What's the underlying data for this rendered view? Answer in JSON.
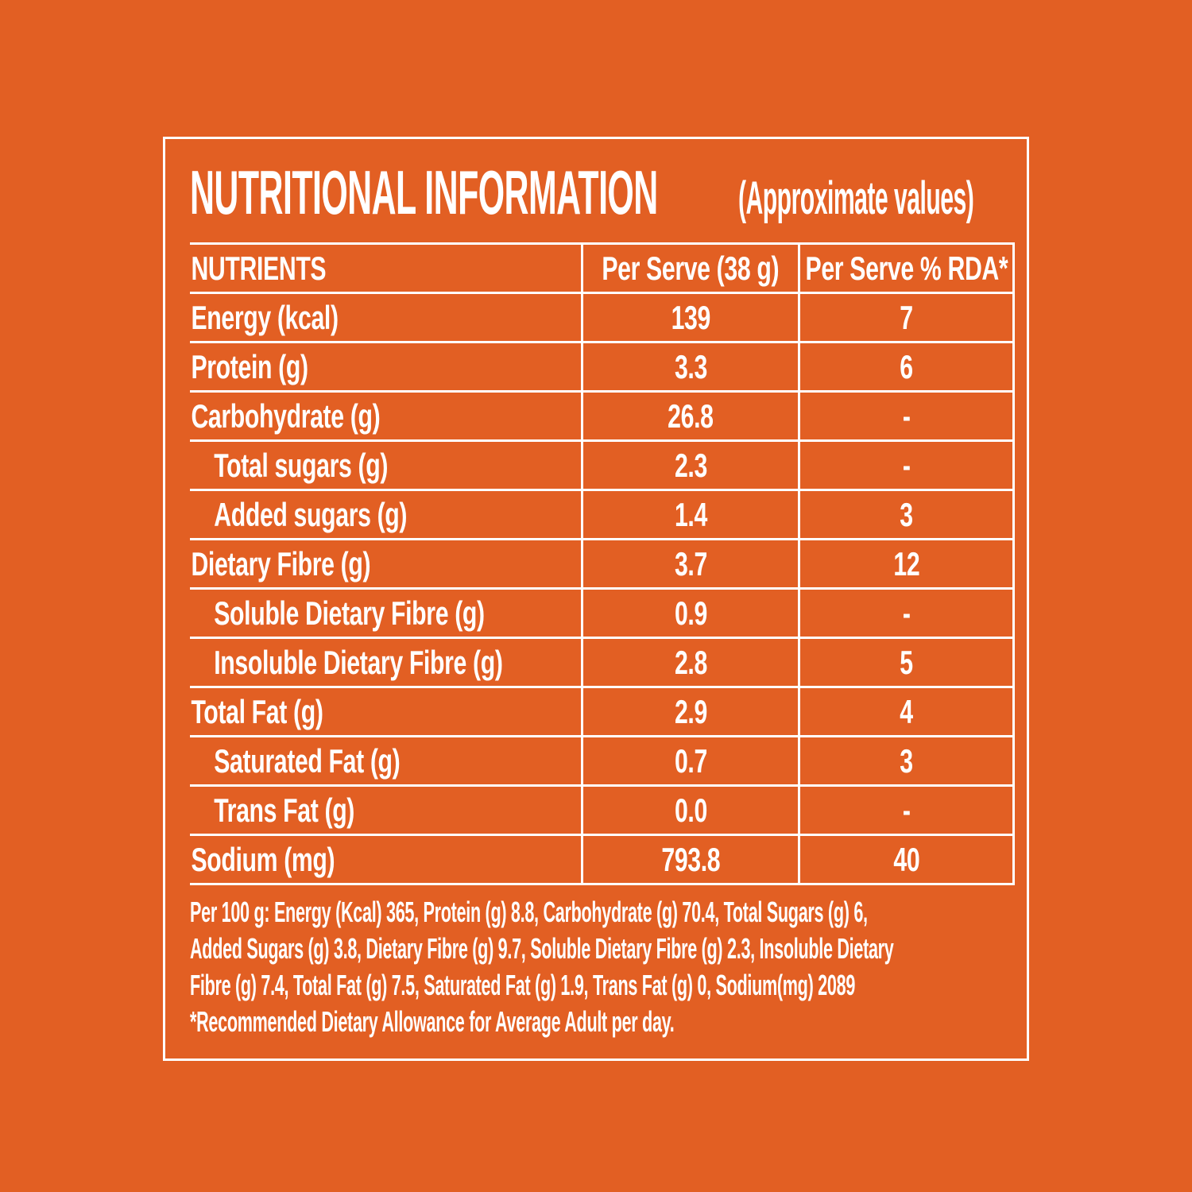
{
  "theme": {
    "bg": "#e25f23",
    "fg": "#ffffff"
  },
  "title": {
    "main": "NUTRITIONAL INFORMATION",
    "sub": "(Approximate values)"
  },
  "table": {
    "headers": [
      "NUTRIENTS",
      "Per Serve (38 g)",
      "Per Serve % RDA*"
    ],
    "rows": [
      {
        "label": "Energy (kcal)",
        "per_serve": "139",
        "per_serve_rda": "7",
        "indent": false
      },
      {
        "label": "Protein (g)",
        "per_serve": "3.3",
        "per_serve_rda": "6",
        "indent": false
      },
      {
        "label": "Carbohydrate (g)",
        "per_serve": "26.8",
        "per_serve_rda": "-",
        "indent": false
      },
      {
        "label": "Total sugars (g)",
        "per_serve": "2.3",
        "per_serve_rda": "-",
        "indent": true
      },
      {
        "label": "Added sugars (g)",
        "per_serve": "1.4",
        "per_serve_rda": "3",
        "indent": true
      },
      {
        "label": "Dietary Fibre (g)",
        "per_serve": "3.7",
        "per_serve_rda": "12",
        "indent": false
      },
      {
        "label": "Soluble Dietary Fibre (g)",
        "per_serve": "0.9",
        "per_serve_rda": "-",
        "indent": true
      },
      {
        "label": "Insoluble Dietary Fibre (g)",
        "per_serve": "2.8",
        "per_serve_rda": "5",
        "indent": true
      },
      {
        "label": "Total Fat (g)",
        "per_serve": "2.9",
        "per_serve_rda": "4",
        "indent": false
      },
      {
        "label": "Saturated Fat (g)",
        "per_serve": "0.7",
        "per_serve_rda": "3",
        "indent": true
      },
      {
        "label": "Trans Fat (g)",
        "per_serve": "0.0",
        "per_serve_rda": "-",
        "indent": true
      },
      {
        "label": "Sodium (mg)",
        "per_serve": "793.8",
        "per_serve_rda": "40",
        "indent": false
      }
    ]
  },
  "footnote": {
    "lines": [
      "Per 100 g: Energy (Kcal) 365, Protein (g) 8.8, Carbohydrate (g) 70.4, Total Sugars (g) 6,",
      "Added Sugars (g) 3.8, Dietary Fibre (g) 9.7, Soluble Dietary Fibre (g) 2.3, Insoluble Dietary",
      "Fibre (g) 7.4, Total Fat (g) 7.5, Saturated Fat (g) 1.9, Trans Fat (g) 0, Sodium(mg) 2089",
      "*Recommended Dietary Allowance for Average Adult per day."
    ]
  }
}
